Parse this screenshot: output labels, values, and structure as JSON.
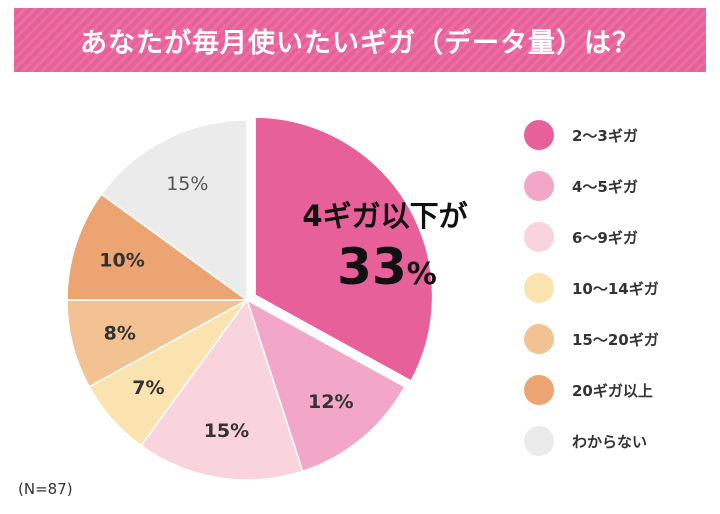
{
  "title": "あなたが毎月使いたいギガ（データ量）は？",
  "sample_note": "(N=87)",
  "callout": {
    "line1": "4ギガ以下が",
    "value": "33",
    "unit": "%"
  },
  "chart_data": {
    "type": "pie",
    "title": "あなたが毎月使いたいギガ（データ量）は？",
    "categories": [
      "2〜3ギガ",
      "4〜5ギガ",
      "6〜9ギガ",
      "10〜14ギガ",
      "15〜20ギガ",
      "20ギガ以上",
      "わからない"
    ],
    "values": [
      33,
      12,
      15,
      7,
      8,
      10,
      15
    ],
    "labels": [
      "",
      "12%",
      "15%",
      "7%",
      "8%",
      "10%",
      "15%"
    ],
    "colors": [
      "#e8609a",
      "#f2a7c8",
      "#f9d4dc",
      "#fbe3b0",
      "#f2c293",
      "#eba472",
      "#ebebeb"
    ],
    "highlight_index": 0,
    "legend_position": "right"
  }
}
